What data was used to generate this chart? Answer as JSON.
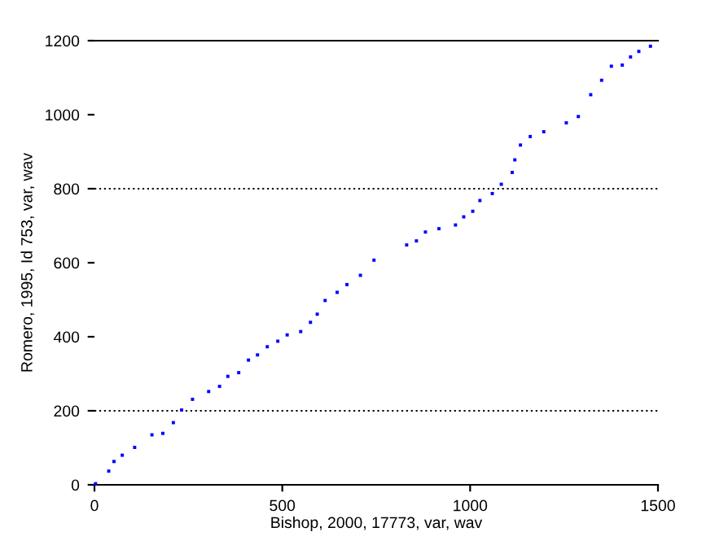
{
  "chart_data": {
    "type": "scatter",
    "xlabel": "Bishop, 2000, 17773, var, wav",
    "ylabel": "Romero, 1995, Id 753, var, wav",
    "series": [
      {
        "color": "#0000ff",
        "x": [
          3,
          38,
          52,
          74,
          107,
          153,
          182,
          210,
          232,
          261,
          304,
          333,
          355,
          384,
          410,
          434,
          460,
          488,
          513,
          549,
          575,
          593,
          614,
          646,
          672,
          708,
          744,
          831,
          857,
          881,
          917,
          961,
          983,
          1007,
          1026,
          1059,
          1083,
          1112,
          1119,
          1134,
          1160,
          1196,
          1256,
          1288,
          1321,
          1350,
          1376,
          1405,
          1427,
          1449,
          1480
        ],
        "values": [
          3,
          37,
          63,
          80,
          101,
          135,
          139,
          168,
          202,
          231,
          252,
          266,
          293,
          303,
          337,
          351,
          373,
          388,
          405,
          414,
          439,
          461,
          498,
          520,
          541,
          566,
          607,
          648,
          659,
          683,
          692,
          702,
          724,
          739,
          768,
          787,
          812,
          844,
          878,
          918,
          941,
          954,
          978,
          995,
          1054,
          1093,
          1131,
          1134,
          1156,
          1171,
          1185
        ]
      }
    ],
    "marker": "square",
    "xlim": [
      0,
      1500
    ],
    "ylim": [
      0,
      1200
    ],
    "xticks": [
      0,
      500,
      1000,
      1500
    ],
    "yticks": [
      0,
      200,
      400,
      600,
      800,
      1000,
      1200
    ],
    "ref_lines": [
      {
        "axis": "y",
        "value": 200,
        "line_style": "dotted",
        "color": "#000000"
      },
      {
        "axis": "y",
        "value": 800,
        "line_style": "dotted",
        "color": "#000000"
      }
    ]
  }
}
